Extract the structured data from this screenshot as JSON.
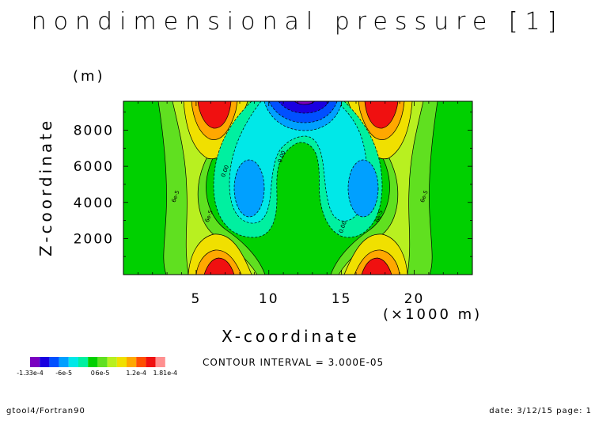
{
  "chart_data": {
    "type": "heatmap",
    "title": "nondimensional pressure [1]",
    "xlabel": "X-coordinate",
    "x_unit": "(×1000 m)",
    "ylabel": "Z-coordinate",
    "y_unit": "(m)",
    "xlim": [
      0,
      24
    ],
    "ylim": [
      0,
      9600
    ],
    "x_ticks": [
      5,
      10,
      15,
      20
    ],
    "y_ticks": [
      2000,
      4000,
      6000,
      8000
    ],
    "contour_labels": [
      {
        "text": "6e-5",
        "x": 3.7,
        "y": 4300
      },
      {
        "text": "6e-5",
        "x": 6.0,
        "y": 3200
      },
      {
        "text": "0.00",
        "x": 7.1,
        "y": 5700
      },
      {
        "text": "0.00",
        "x": 11.0,
        "y": 6500
      },
      {
        "text": "0.00",
        "x": 15.2,
        "y": 2600
      },
      {
        "text": "6e-5",
        "x": 17.7,
        "y": 3200
      },
      {
        "text": "6e-5",
        "x": 20.8,
        "y": 4300
      }
    ],
    "levels": [
      {
        "color": "#7a00c0"
      },
      {
        "color": "#1a00e0"
      },
      {
        "color": "#0050ff"
      },
      {
        "color": "#00a0ff"
      },
      {
        "color": "#00e8e8"
      },
      {
        "color": "#00f0a0"
      },
      {
        "color": "#00d000"
      },
      {
        "color": "#60e020"
      },
      {
        "color": "#b8f020"
      },
      {
        "color": "#f0e000"
      },
      {
        "color": "#ffa800"
      },
      {
        "color": "#ff5000"
      },
      {
        "color": "#f01010"
      },
      {
        "color": "#ff9090"
      }
    ],
    "legend_labels": [
      "-1.33e-4",
      "-6e-5",
      "0",
      "6e-5",
      "1.2e-4",
      "1.81e-4"
    ],
    "contour_interval_text": "CONTOUR INTERVAL = 3.000E-05"
  },
  "footer": {
    "left": "gtool4/Fortran90",
    "right": "date: 3/12/15 page: 1"
  },
  "colors": {
    "background": "#ffffff",
    "field_base": "#00d000"
  }
}
